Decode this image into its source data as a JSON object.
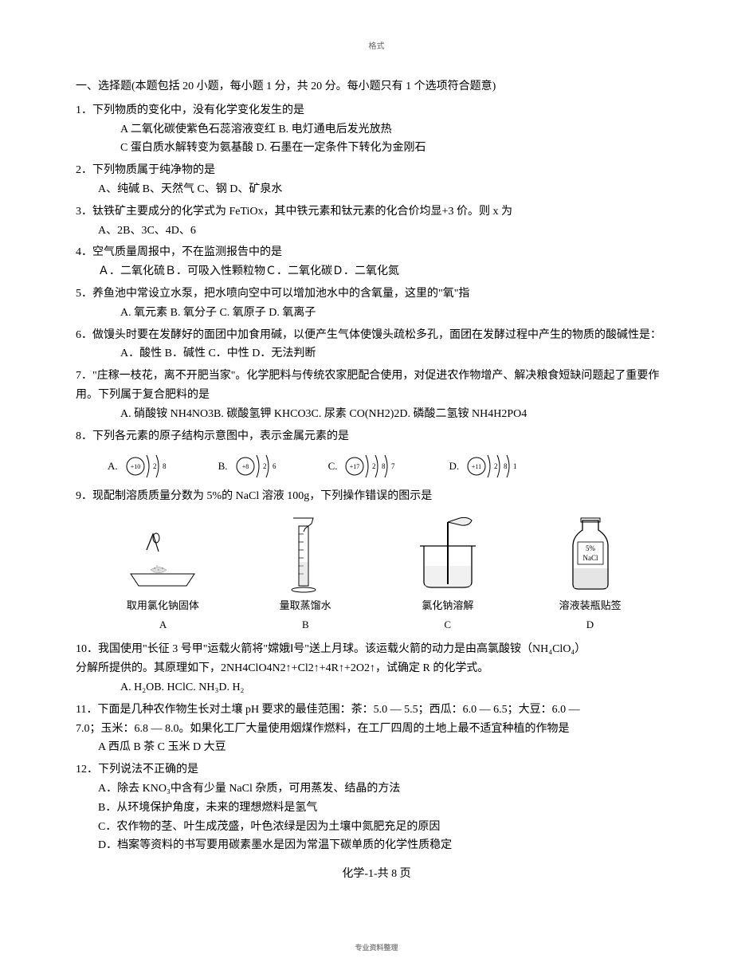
{
  "top_header": "格式",
  "section_title": "一、选择题(本题包括 20 小题，每小题 1 分，共 20 分。每小题只有 1 个选项符合题意)",
  "q1": {
    "stem": "1．下列物质的变化中，没有化学变化发生的是",
    "opts": "A 二氧化碳使紫色石蕊溶液变红 B. 电灯通电后发光放热",
    "opts2": "C 蛋白质水解转变为氨基酸 D. 石墨在一定条件下转化为金刚石"
  },
  "q2": {
    "stem": "2．下列物质属于纯净物的是",
    "opts": "A、纯碱 B、天然气 C、钢 D、矿泉水"
  },
  "q3": {
    "stem": "3．钛铁矿主要成分的化学式为 FeTiOx，其中铁元素和钛元素的化合价均显+3 价。则 x 为",
    "opts": "A、2B、3C、4D、6"
  },
  "q4": {
    "stem": "4．空气质量周报中，不在监测报告中的是",
    "opts": "Ａ．二氧化硫Ｂ．可吸入性颗粒物Ｃ．二氧化碳Ｄ．二氧化氮"
  },
  "q5": {
    "stem": "5．养鱼池中常设立水泵，把水喷向空中可以增加池水中的含氧量，这里的\"氧\"指",
    "opts": "A. 氧元素 B. 氧分子 C. 氧原子 D. 氧离子"
  },
  "q6": {
    "stem": "6．做馒头时要在发酵好的面团中加食用碱，以便产生气体使馒头疏松多孔，面团在发酵过程中产生的物质的酸碱性是：",
    "opts": "A．酸性 B．碱性 C．中性 D．无法判断"
  },
  "q7": {
    "stem": "7．\"庄稼一枝花，离不开肥当家\"。化学肥料与传统农家肥配合使用，对促进农作物增产、解决粮食短缺问题起了重要作用。下列属于复合肥料的是",
    "opts": "A. 硝酸铵 NH4NO3B. 碳酸氢钾 KHCO3C. 尿素 CO(NH2)2D. 磷酸二氢铵 NH4H2PO4"
  },
  "q8": {
    "stem": "8．下列各元素的原子结构示意图中，表示金属元素的是",
    "atoms": [
      {
        "label": "A.",
        "nucleus": "+10",
        "shells": [
          "2",
          "8"
        ]
      },
      {
        "label": "B.",
        "nucleus": "+8",
        "shells": [
          "2",
          "6"
        ]
      },
      {
        "label": "C.",
        "nucleus": "+17",
        "shells": [
          "2",
          "8",
          "7"
        ]
      },
      {
        "label": "D.",
        "nucleus": "+11",
        "shells": [
          "2",
          "8",
          "1"
        ]
      }
    ]
  },
  "q9": {
    "stem": "9．现配制溶质质量分数为 5%的 NaCl 溶液 100g，下列操作错误的图示是",
    "captions": [
      "取用氯化钠固体",
      "量取蒸馏水",
      "氯化钠溶解",
      "溶液装瓶贴签"
    ],
    "letters": [
      "A",
      "B",
      "C",
      "D"
    ],
    "bottle_top": "5%",
    "bottle_text": "NaCl"
  },
  "q10": {
    "line1": "10．我国使用\"长征 3 号甲\"运载火箭将\"嫦娥Ⅰ号\"送上月球。该运载火箭的动力是由高氯酸铵（NH₄ClO₄）",
    "line2": "分解所提供的。其原理如下，2NH4ClO4N2↑+Cl2↑+4R↑+2O2↑，试确定 R 的化学式。",
    "opts": "A. H₂OB. HClC. NH₃D. H₂"
  },
  "q11": {
    "line1": "11．下面是几种农作物生长对土壤 pH 要求的最佳范围：茶：5.0 — 5.5；西瓜：6.0 — 6.5；大豆：6.0 —",
    "line2": "7.0；玉米：6.8 — 8.0。如果化工厂大量使用烟煤作燃料，在工厂四周的土地上最不适宜种植的作物是",
    "opts": "A 西瓜 B 茶 C 玉米 D 大豆"
  },
  "q12": {
    "stem": "12．下列说法不正确的是",
    "a": "A．除去 KNO₃中含有少量 NaCl 杂质，可用蒸发、结晶的方法",
    "b": "B．从环境保护角度，未来的理想燃料是氢气",
    "c": "C．农作物的茎、叶生成茂盛，叶色浓绿是因为土壤中氮肥充足的原因",
    "d": "D．档案等资料的书写要用碳素墨水是因为常温下碳单质的化学性质稳定"
  },
  "page_footer": "化学-1-共 8 页",
  "bottom_mark": "专业资料整理",
  "colors": {
    "text": "#000000",
    "bg": "#ffffff",
    "muted": "#666666"
  }
}
